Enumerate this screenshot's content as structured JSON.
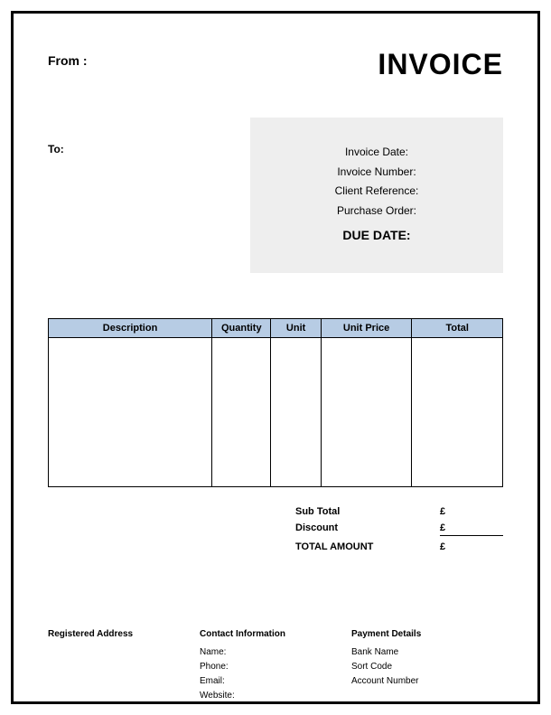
{
  "header": {
    "from_label": "From :",
    "invoice_title": "INVOICE"
  },
  "to_label": "To:",
  "info_box": {
    "invoice_date_label": "Invoice Date:",
    "invoice_number_label": "Invoice Number:",
    "client_reference_label": "Client Reference:",
    "purchase_order_label": "Purchase Order:",
    "due_date_label": "DUE DATE:",
    "background_color": "#eeeeee"
  },
  "table": {
    "header_background": "#b7cce4",
    "border_color": "#000000",
    "columns": [
      "Description",
      "Quantity",
      "Unit",
      "Unit Price",
      "Total"
    ]
  },
  "totals": {
    "subtotal_label": "Sub Total",
    "subtotal_value": "£",
    "discount_label": "Discount",
    "discount_value": "£",
    "total_amount_label": "TOTAL AMOUNT",
    "total_amount_value": "£"
  },
  "footer": {
    "registered_address_heading": "Registered Address",
    "contact_heading": "Contact Information",
    "contact_name": "Name:",
    "contact_phone": "Phone:",
    "contact_email": "Email:",
    "contact_website": "Website:",
    "payment_heading": "Payment Details",
    "payment_bank": "Bank Name",
    "payment_sort": "Sort Code",
    "payment_account": "Account Number"
  }
}
